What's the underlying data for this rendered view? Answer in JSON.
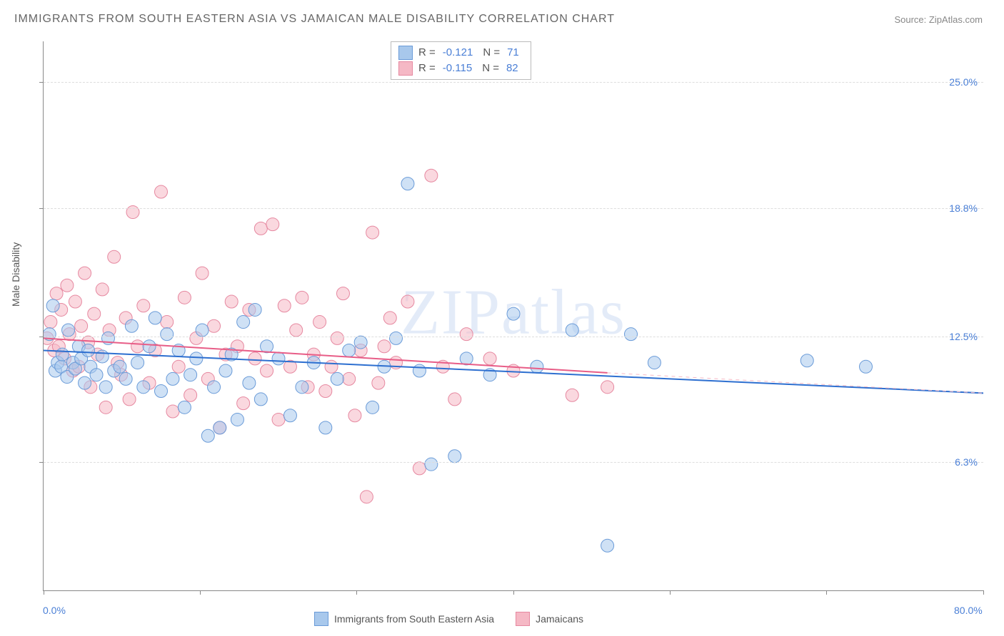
{
  "title": "IMMIGRANTS FROM SOUTH EASTERN ASIA VS JAMAICAN MALE DISABILITY CORRELATION CHART",
  "source_label": "Source: ZipAtlas.com",
  "watermark": "ZIPatlas",
  "ylabel": "Male Disability",
  "chart": {
    "type": "scatter",
    "xlim": [
      0,
      80
    ],
    "ylim": [
      0,
      27
    ],
    "x_tick_positions": [
      0,
      13.3,
      26.6,
      40,
      53.3,
      66.6,
      80
    ],
    "x_axis_labels": [
      {
        "x": 0,
        "text": "0.0%"
      },
      {
        "x": 80,
        "text": "80.0%"
      }
    ],
    "y_axis_labels": [
      {
        "y": 25.0,
        "text": "25.0%"
      },
      {
        "y": 18.8,
        "text": "18.8%"
      },
      {
        "y": 12.5,
        "text": "12.5%"
      },
      {
        "y": 6.3,
        "text": "6.3%"
      }
    ],
    "grid_color": "#dddddd",
    "background_color": "#ffffff",
    "marker_radius": 9,
    "marker_stroke_width": 1,
    "series": [
      {
        "name": "Immigrants from South Eastern Asia",
        "fill_color": "#a8c8ec",
        "stroke_color": "#6a9bd8",
        "fill_opacity": 0.55,
        "R": "-0.121",
        "N": "71",
        "trend": {
          "x1": 0,
          "y1": 11.8,
          "x2": 80,
          "y2": 9.7,
          "color": "#2d6fd0",
          "width": 2
        },
        "points": [
          [
            0.5,
            12.6
          ],
          [
            0.8,
            14.0
          ],
          [
            1.0,
            10.8
          ],
          [
            1.2,
            11.2
          ],
          [
            1.5,
            11.0
          ],
          [
            1.6,
            11.6
          ],
          [
            2.0,
            10.5
          ],
          [
            2.1,
            12.8
          ],
          [
            2.5,
            11.2
          ],
          [
            2.7,
            10.9
          ],
          [
            3.0,
            12.0
          ],
          [
            3.2,
            11.4
          ],
          [
            3.5,
            10.2
          ],
          [
            3.8,
            11.8
          ],
          [
            4.0,
            11.0
          ],
          [
            4.5,
            10.6
          ],
          [
            5.0,
            11.5
          ],
          [
            5.3,
            10.0
          ],
          [
            5.5,
            12.4
          ],
          [
            6.0,
            10.8
          ],
          [
            6.5,
            11.0
          ],
          [
            7.0,
            10.4
          ],
          [
            7.5,
            13.0
          ],
          [
            8.0,
            11.2
          ],
          [
            8.5,
            10.0
          ],
          [
            9.0,
            12.0
          ],
          [
            9.5,
            13.4
          ],
          [
            10.0,
            9.8
          ],
          [
            10.5,
            12.6
          ],
          [
            11.0,
            10.4
          ],
          [
            11.5,
            11.8
          ],
          [
            12.0,
            9.0
          ],
          [
            12.5,
            10.6
          ],
          [
            13.0,
            11.4
          ],
          [
            13.5,
            12.8
          ],
          [
            14.0,
            7.6
          ],
          [
            14.5,
            10.0
          ],
          [
            15.0,
            8.0
          ],
          [
            15.5,
            10.8
          ],
          [
            16.0,
            11.6
          ],
          [
            16.5,
            8.4
          ],
          [
            17.0,
            13.2
          ],
          [
            17.5,
            10.2
          ],
          [
            18.0,
            13.8
          ],
          [
            18.5,
            9.4
          ],
          [
            19.0,
            12.0
          ],
          [
            20.0,
            11.4
          ],
          [
            21.0,
            8.6
          ],
          [
            22.0,
            10.0
          ],
          [
            23.0,
            11.2
          ],
          [
            24.0,
            8.0
          ],
          [
            25.0,
            10.4
          ],
          [
            26.0,
            11.8
          ],
          [
            27.0,
            12.2
          ],
          [
            28.0,
            9.0
          ],
          [
            29.0,
            11.0
          ],
          [
            30.0,
            12.4
          ],
          [
            31.0,
            20.0
          ],
          [
            32.0,
            10.8
          ],
          [
            33.0,
            6.2
          ],
          [
            35.0,
            6.6
          ],
          [
            36.0,
            11.4
          ],
          [
            38.0,
            10.6
          ],
          [
            40.0,
            13.6
          ],
          [
            42.0,
            11.0
          ],
          [
            45.0,
            12.8
          ],
          [
            48.0,
            2.2
          ],
          [
            50.0,
            12.6
          ],
          [
            52.0,
            11.2
          ],
          [
            65.0,
            11.3
          ],
          [
            70.0,
            11.0
          ]
        ]
      },
      {
        "name": "Jamaicans",
        "fill_color": "#f5b8c5",
        "stroke_color": "#e688a0",
        "fill_opacity": 0.55,
        "R": "-0.115",
        "N": "82",
        "trend": {
          "x1": 0,
          "y1": 12.4,
          "x2": 48,
          "y2": 10.7,
          "color": "#e85d87",
          "width": 2
        },
        "trend_dash": {
          "x1": 48,
          "y1": 10.7,
          "x2": 80,
          "y2": 9.7,
          "color": "#f5b8c5",
          "width": 1
        },
        "points": [
          [
            0.3,
            12.4
          ],
          [
            0.6,
            13.2
          ],
          [
            0.9,
            11.8
          ],
          [
            1.1,
            14.6
          ],
          [
            1.3,
            12.0
          ],
          [
            1.5,
            13.8
          ],
          [
            1.8,
            11.4
          ],
          [
            2.0,
            15.0
          ],
          [
            2.2,
            12.6
          ],
          [
            2.5,
            10.8
          ],
          [
            2.7,
            14.2
          ],
          [
            3.0,
            11.0
          ],
          [
            3.2,
            13.0
          ],
          [
            3.5,
            15.6
          ],
          [
            3.8,
            12.2
          ],
          [
            4.0,
            10.0
          ],
          [
            4.3,
            13.6
          ],
          [
            4.6,
            11.6
          ],
          [
            5.0,
            14.8
          ],
          [
            5.3,
            9.0
          ],
          [
            5.6,
            12.8
          ],
          [
            6.0,
            16.4
          ],
          [
            6.3,
            11.2
          ],
          [
            6.6,
            10.6
          ],
          [
            7.0,
            13.4
          ],
          [
            7.3,
            9.4
          ],
          [
            7.6,
            18.6
          ],
          [
            8.0,
            12.0
          ],
          [
            8.5,
            14.0
          ],
          [
            9.0,
            10.2
          ],
          [
            9.5,
            11.8
          ],
          [
            10.0,
            19.6
          ],
          [
            10.5,
            13.2
          ],
          [
            11.0,
            8.8
          ],
          [
            11.5,
            11.0
          ],
          [
            12.0,
            14.4
          ],
          [
            12.5,
            9.6
          ],
          [
            13.0,
            12.4
          ],
          [
            13.5,
            15.6
          ],
          [
            14.0,
            10.4
          ],
          [
            14.5,
            13.0
          ],
          [
            15.0,
            8.0
          ],
          [
            15.5,
            11.6
          ],
          [
            16.0,
            14.2
          ],
          [
            16.5,
            12.0
          ],
          [
            17.0,
            9.2
          ],
          [
            17.5,
            13.8
          ],
          [
            18.0,
            11.4
          ],
          [
            18.5,
            17.8
          ],
          [
            19.0,
            10.8
          ],
          [
            19.5,
            18.0
          ],
          [
            20.0,
            8.4
          ],
          [
            20.5,
            14.0
          ],
          [
            21.0,
            11.0
          ],
          [
            21.5,
            12.8
          ],
          [
            22.0,
            14.4
          ],
          [
            22.5,
            10.0
          ],
          [
            23.0,
            11.6
          ],
          [
            23.5,
            13.2
          ],
          [
            24.0,
            9.8
          ],
          [
            24.5,
            11.0
          ],
          [
            25.0,
            12.4
          ],
          [
            25.5,
            14.6
          ],
          [
            26.0,
            10.4
          ],
          [
            26.5,
            8.6
          ],
          [
            27.0,
            11.8
          ],
          [
            27.5,
            4.6
          ],
          [
            28.0,
            17.6
          ],
          [
            28.5,
            10.2
          ],
          [
            29.0,
            12.0
          ],
          [
            29.5,
            13.4
          ],
          [
            30.0,
            11.2
          ],
          [
            31.0,
            14.2
          ],
          [
            32.0,
            6.0
          ],
          [
            33.0,
            20.4
          ],
          [
            34.0,
            11.0
          ],
          [
            35.0,
            9.4
          ],
          [
            36.0,
            12.6
          ],
          [
            38.0,
            11.4
          ],
          [
            40.0,
            10.8
          ],
          [
            45.0,
            9.6
          ],
          [
            48.0,
            10.0
          ]
        ]
      }
    ]
  }
}
